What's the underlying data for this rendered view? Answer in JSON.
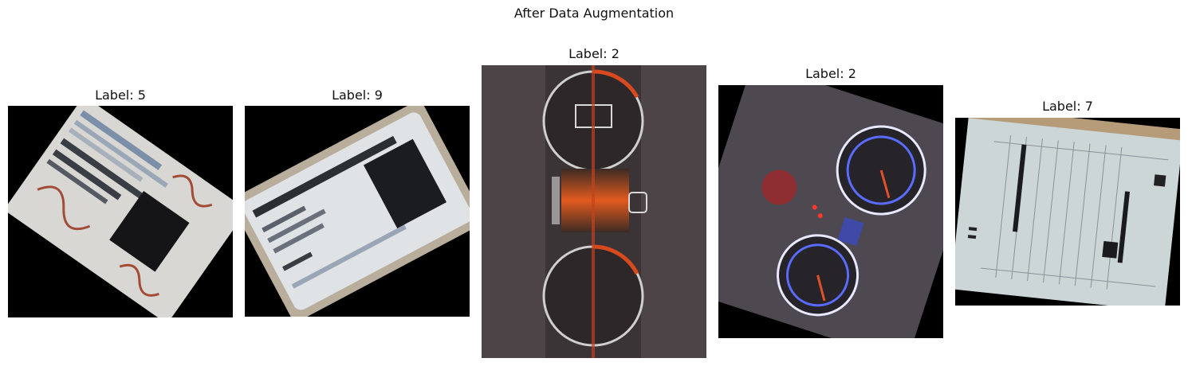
{
  "figure": {
    "title": "After Data Augmentation"
  },
  "panels": [
    {
      "label": "Label: 5",
      "subject": "rotated document with stamps and handwriting"
    },
    {
      "label": "Label: 9",
      "subject": "rotated ID card"
    },
    {
      "label": "Label: 2",
      "subject": "vehicle instrument cluster"
    },
    {
      "label": "Label: 2",
      "subject": "vehicle instrument cluster at an angle"
    },
    {
      "label": "Label: 7",
      "subject": "rotated Korean form document"
    }
  ]
}
